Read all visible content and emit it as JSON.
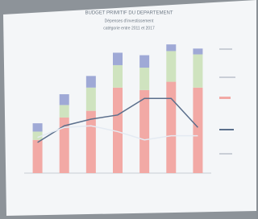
{
  "chart_data": {
    "type": "stacked-bar",
    "title": "BUDGET PRIMITIF DU DEPARTEMENT",
    "subtitle": [
      "Dépenses d'investissement",
      "catégorie entre 2011 et 2017"
    ],
    "categories": [
      null,
      null,
      null,
      null,
      null,
      null,
      null
    ],
    "ylim": [
      0,
      160
    ],
    "series": [
      {
        "color": "#f2a9a5",
        "values": [
          40,
          67,
          75,
          103,
          100,
          110,
          103
        ]
      },
      {
        "color": "#cfe3bf",
        "values": [
          10,
          15,
          28,
          27,
          27,
          37,
          40
        ]
      },
      {
        "color": "#9fa9d6",
        "values": [
          10,
          13,
          14,
          15,
          15,
          8,
          7
        ]
      }
    ],
    "lines": [
      {
        "color": "#5b6f8c",
        "values": [
          37,
          57,
          65,
          70,
          90,
          90,
          55
        ]
      },
      {
        "color": "#e4eaf2",
        "values": [
          43,
          55,
          57,
          50,
          40,
          45,
          45
        ]
      }
    ]
  }
}
